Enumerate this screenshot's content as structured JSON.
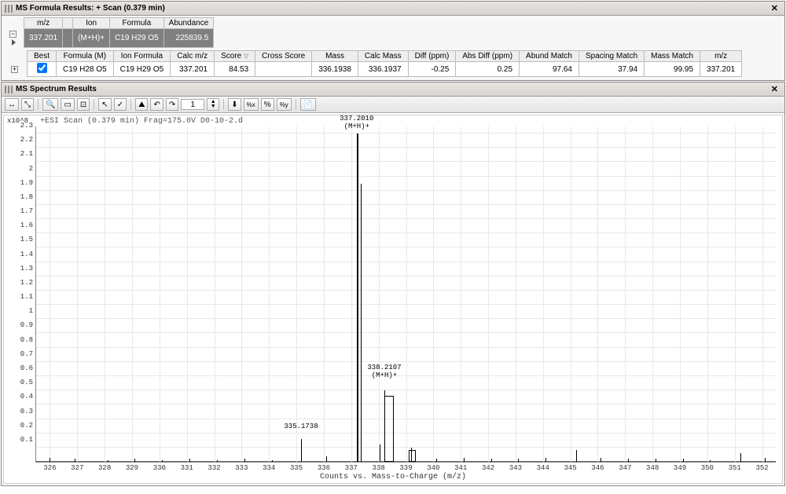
{
  "panel1": {
    "title": "MS Formula Results: + Scan (0.379 min)",
    "top_headers": [
      "m/z",
      "Ion",
      "Formula",
      "Abundance"
    ],
    "top_row": [
      "337.201",
      "(M+H)+",
      "C19 H29 O5",
      "225839.5"
    ],
    "detail_headers": [
      "Best",
      "Formula (M)",
      "Ion Formula",
      "Calc m/z",
      "Score",
      "Cross Score",
      "Mass",
      "Calc Mass",
      "Diff (ppm)",
      "Abs Diff (ppm)",
      "Abund Match",
      "Spacing Match",
      "Mass Match",
      "m/z"
    ],
    "detail_row": {
      "best": "✓",
      "formula_m": "C19 H28 O5",
      "ion_formula": "C19 H29 O5",
      "calc_mz": "337.201",
      "score": "84.53",
      "cross": "",
      "mass": "336.1938",
      "calc_mass": "336.1937",
      "diff": "-0.25",
      "abs_diff": "0.25",
      "abund": "97.64",
      "spacing": "37.94",
      "mass_match": "99.95",
      "mz": "337.201"
    },
    "sort_indicator": "▽"
  },
  "panel2": {
    "title": "MS Spectrum Results",
    "spin_value": "1"
  },
  "chart": {
    "title_line": "+ESI Scan (0.379 min) Frag=175.0V D0-10-2.d",
    "y_exp": "x10^8",
    "xlabel": "Counts vs. Mass-to-Charge (m/z)",
    "xmin": 325.5,
    "xmax": 352.5,
    "ymin": 0,
    "ymax": 2.35,
    "yticks": [
      "0.1",
      "0.2",
      "0.3",
      "0.4",
      "0.5",
      "0.6",
      "0.7",
      "0.8",
      "0.9",
      "1",
      "1.1",
      "1.2",
      "1.3",
      "1.4",
      "1.5",
      "1.6",
      "1.7",
      "1.8",
      "1.9",
      "2",
      "2.1",
      "2.2",
      "2.3"
    ],
    "xticks": [
      326,
      327,
      328,
      329,
      330,
      331,
      332,
      333,
      334,
      335,
      336,
      337,
      338,
      339,
      340,
      341,
      342,
      343,
      344,
      345,
      346,
      347,
      348,
      349,
      350,
      351,
      352
    ],
    "peaks": [
      {
        "x": 326.0,
        "h": 0.03
      },
      {
        "x": 326.9,
        "h": 0.02
      },
      {
        "x": 328.1,
        "h": 0.01
      },
      {
        "x": 329.1,
        "h": 0.02
      },
      {
        "x": 330.1,
        "h": 0.01
      },
      {
        "x": 331.1,
        "h": 0.02
      },
      {
        "x": 332.1,
        "h": 0.01
      },
      {
        "x": 333.1,
        "h": 0.02
      },
      {
        "x": 334.1,
        "h": 0.01
      },
      {
        "x": 335.17,
        "h": 0.16,
        "label": "335.1738",
        "label_h": 0.22
      },
      {
        "x": 336.1,
        "h": 0.04
      },
      {
        "x": 337.2,
        "h": 2.3,
        "label": "337.2010",
        "sub": "(M+H)+",
        "label_h": 2.32,
        "thick": 2
      },
      {
        "x": 337.35,
        "h": 1.95,
        "thick": 1
      },
      {
        "x": 338.21,
        "h": 0.5,
        "label": "338.2107",
        "sub": "(M+H)+",
        "label_h": 0.58,
        "box": true,
        "box_h": 0.46,
        "box_w": 0.35
      },
      {
        "x": 338.05,
        "h": 0.12
      },
      {
        "x": 339.2,
        "h": 0.1
      },
      {
        "x": 339.1,
        "h": 0.07,
        "box": true,
        "box_h": 0.08,
        "box_w": 0.25
      },
      {
        "x": 340.1,
        "h": 0.02
      },
      {
        "x": 341.1,
        "h": 0.03
      },
      {
        "x": 342.1,
        "h": 0.02
      },
      {
        "x": 343.1,
        "h": 0.02
      },
      {
        "x": 344.1,
        "h": 0.03
      },
      {
        "x": 345.2,
        "h": 0.08
      },
      {
        "x": 346.1,
        "h": 0.03
      },
      {
        "x": 347.1,
        "h": 0.02
      },
      {
        "x": 348.1,
        "h": 0.02
      },
      {
        "x": 349.1,
        "h": 0.02
      },
      {
        "x": 350.1,
        "h": 0.01
      },
      {
        "x": 351.2,
        "h": 0.06
      },
      {
        "x": 352.1,
        "h": 0.03
      }
    ],
    "colors": {
      "grid": "#e8e8e8",
      "axis": "#888888",
      "peak": "#000000",
      "bg": "#ffffff"
    }
  }
}
